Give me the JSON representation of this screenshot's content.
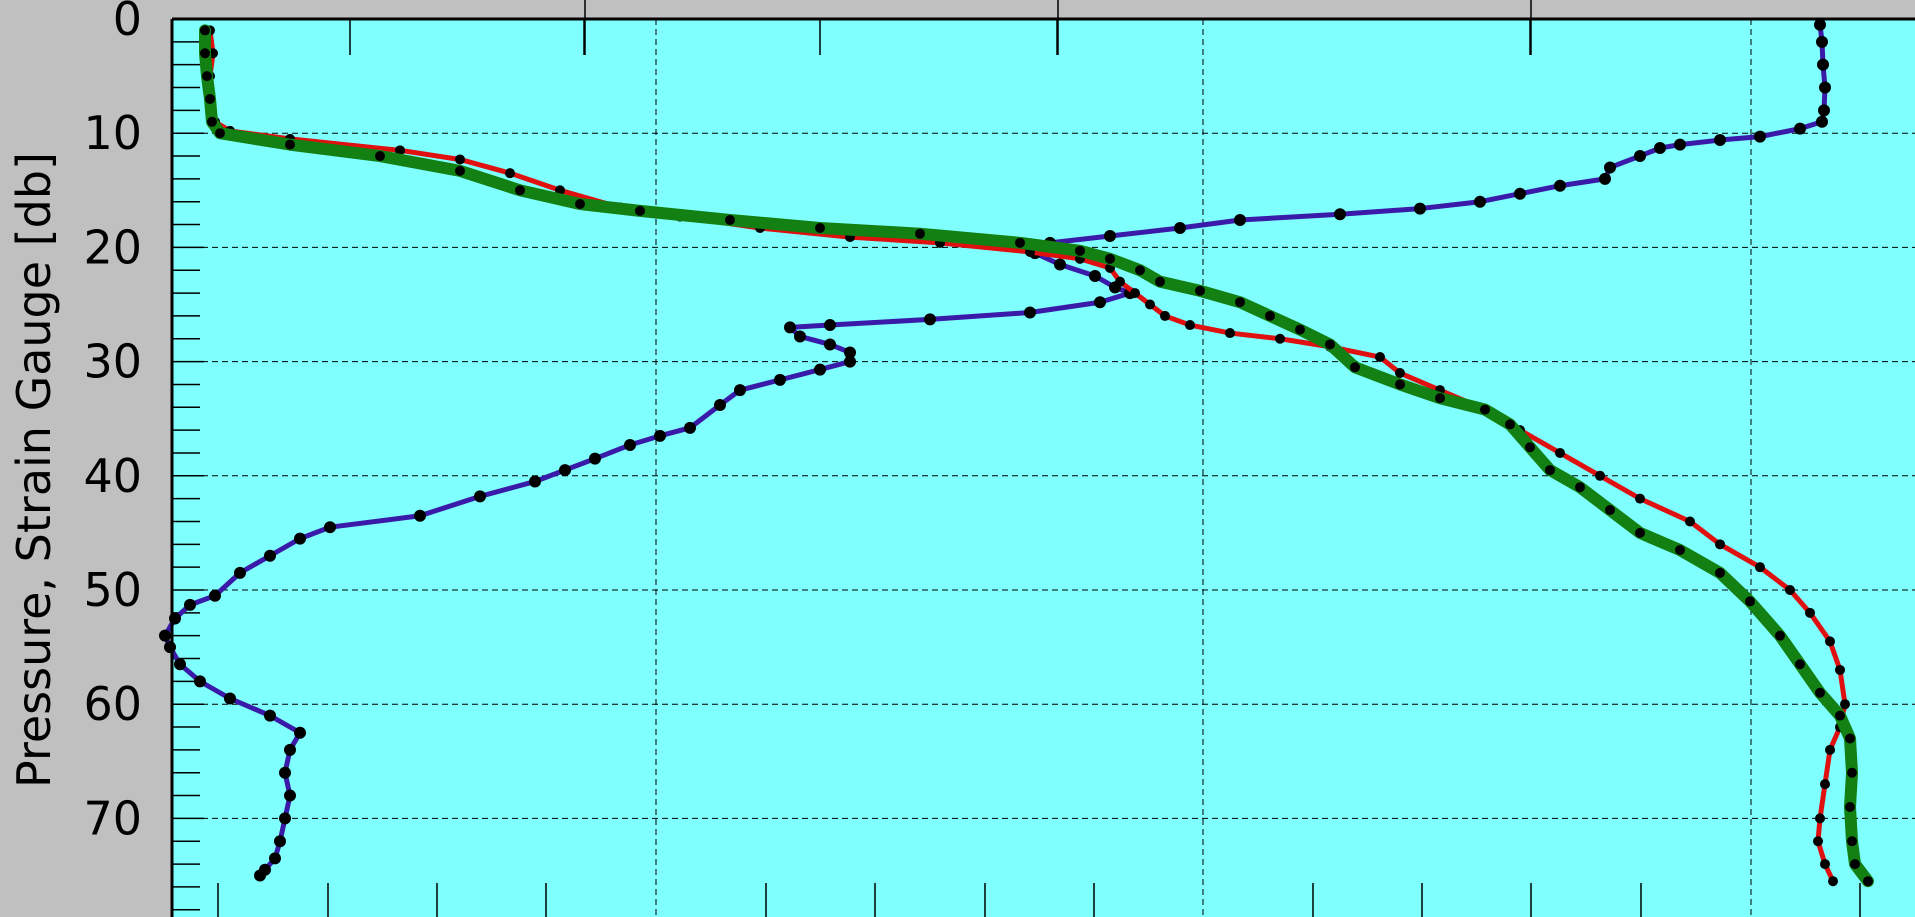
{
  "chart_data": {
    "type": "line",
    "ylabel": "Pressure, Strain Gauge [db]",
    "y_axis": {
      "ticks": [
        0,
        10,
        20,
        30,
        40,
        50,
        60,
        70
      ],
      "inverted": true
    },
    "grid": true,
    "colors": {
      "background": "#80ffff",
      "frame": "#c0c0c0",
      "markers": "#000000",
      "series_purple": "#3a1aa8",
      "series_red": "#e01010",
      "series_green": "#128012"
    },
    "series": [
      {
        "color": "#3a1aa8",
        "line_width": 5,
        "marker_radius": 6,
        "points": [
          [
            1820,
            0.5
          ],
          [
            1822,
            2
          ],
          [
            1823,
            4
          ],
          [
            1825,
            6
          ],
          [
            1824,
            8
          ],
          [
            1822,
            9
          ],
          [
            1800,
            9.6
          ],
          [
            1760,
            10.3
          ],
          [
            1720,
            10.6
          ],
          [
            1680,
            11
          ],
          [
            1660,
            11.3
          ],
          [
            1640,
            12
          ],
          [
            1610,
            13
          ],
          [
            1605,
            14
          ],
          [
            1560,
            14.6
          ],
          [
            1520,
            15.3
          ],
          [
            1480,
            16
          ],
          [
            1420,
            16.6
          ],
          [
            1340,
            17.1
          ],
          [
            1240,
            17.6
          ],
          [
            1180,
            18.3
          ],
          [
            1110,
            19
          ],
          [
            1050,
            19.6
          ],
          [
            1035,
            20.5
          ],
          [
            1060,
            21.5
          ],
          [
            1095,
            22.5
          ],
          [
            1115,
            23.5
          ],
          [
            1130,
            24
          ],
          [
            1100,
            24.8
          ],
          [
            1030,
            25.7
          ],
          [
            930,
            26.3
          ],
          [
            830,
            26.8
          ],
          [
            790,
            27
          ],
          [
            800,
            27.8
          ],
          [
            830,
            28.5
          ],
          [
            850,
            29.2
          ],
          [
            850,
            30
          ],
          [
            820,
            30.7
          ],
          [
            780,
            31.6
          ],
          [
            740,
            32.5
          ],
          [
            720,
            33.8
          ],
          [
            690,
            35.8
          ],
          [
            660,
            36.5
          ],
          [
            630,
            37.3
          ],
          [
            595,
            38.5
          ],
          [
            565,
            39.5
          ],
          [
            535,
            40.5
          ],
          [
            480,
            41.8
          ],
          [
            420,
            43.5
          ],
          [
            330,
            44.5
          ],
          [
            300,
            45.5
          ],
          [
            270,
            47
          ],
          [
            240,
            48.5
          ],
          [
            215,
            50.5
          ],
          [
            190,
            51.3
          ],
          [
            175,
            52.5
          ],
          [
            165,
            54
          ],
          [
            170,
            55
          ],
          [
            180,
            56.5
          ],
          [
            200,
            58
          ],
          [
            230,
            59.5
          ],
          [
            270,
            61
          ],
          [
            300,
            62.5
          ],
          [
            290,
            64
          ],
          [
            285,
            66
          ],
          [
            290,
            68
          ],
          [
            285,
            70
          ],
          [
            280,
            72
          ],
          [
            275,
            73.5
          ],
          [
            265,
            74.5
          ],
          [
            260,
            75
          ]
        ]
      },
      {
        "color": "#e01010",
        "line_width": 5,
        "marker_radius": 5,
        "points": [
          [
            210,
            1
          ],
          [
            213,
            3
          ],
          [
            210,
            5
          ],
          [
            210,
            7
          ],
          [
            215,
            9
          ],
          [
            230,
            9.8
          ],
          [
            290,
            10.5
          ],
          [
            400,
            11.5
          ],
          [
            460,
            12.3
          ],
          [
            510,
            13.5
          ],
          [
            560,
            15
          ],
          [
            620,
            16.5
          ],
          [
            680,
            17.3
          ],
          [
            760,
            18.3
          ],
          [
            850,
            19.1
          ],
          [
            940,
            19.6
          ],
          [
            1030,
            20.4
          ],
          [
            1080,
            21
          ],
          [
            1110,
            21.8
          ],
          [
            1120,
            23
          ],
          [
            1135,
            24
          ],
          [
            1150,
            25
          ],
          [
            1165,
            26
          ],
          [
            1190,
            26.8
          ],
          [
            1230,
            27.5
          ],
          [
            1280,
            28
          ],
          [
            1330,
            28.7
          ],
          [
            1380,
            29.6
          ],
          [
            1400,
            31
          ],
          [
            1440,
            32.5
          ],
          [
            1480,
            34
          ],
          [
            1520,
            36
          ],
          [
            1560,
            38
          ],
          [
            1600,
            40
          ],
          [
            1640,
            42
          ],
          [
            1690,
            44
          ],
          [
            1720,
            46
          ],
          [
            1760,
            48
          ],
          [
            1790,
            50
          ],
          [
            1810,
            52
          ],
          [
            1830,
            54.5
          ],
          [
            1840,
            57
          ],
          [
            1845,
            60
          ],
          [
            1840,
            62
          ],
          [
            1830,
            64
          ],
          [
            1825,
            67
          ],
          [
            1820,
            70
          ],
          [
            1818,
            72
          ],
          [
            1825,
            74
          ],
          [
            1833,
            75.5
          ]
        ]
      },
      {
        "color": "#128012",
        "line_width": 12,
        "marker_radius": 5,
        "points": [
          [
            205,
            1
          ],
          [
            205,
            3
          ],
          [
            207,
            5
          ],
          [
            210,
            7
          ],
          [
            212,
            9
          ],
          [
            220,
            10
          ],
          [
            290,
            11
          ],
          [
            380,
            12
          ],
          [
            460,
            13.3
          ],
          [
            520,
            15
          ],
          [
            580,
            16.2
          ],
          [
            640,
            16.8
          ],
          [
            730,
            17.6
          ],
          [
            820,
            18.3
          ],
          [
            920,
            18.8
          ],
          [
            1020,
            19.6
          ],
          [
            1080,
            20.3
          ],
          [
            1110,
            21
          ],
          [
            1140,
            22
          ],
          [
            1160,
            23
          ],
          [
            1200,
            23.8
          ],
          [
            1240,
            24.8
          ],
          [
            1270,
            26
          ],
          [
            1300,
            27.2
          ],
          [
            1330,
            28.5
          ],
          [
            1355,
            30.5
          ],
          [
            1400,
            32
          ],
          [
            1440,
            33.2
          ],
          [
            1485,
            34.2
          ],
          [
            1510,
            35.5
          ],
          [
            1530,
            37.5
          ],
          [
            1550,
            39.5
          ],
          [
            1580,
            41
          ],
          [
            1610,
            43
          ],
          [
            1640,
            45
          ],
          [
            1680,
            46.5
          ],
          [
            1720,
            48.5
          ],
          [
            1750,
            51
          ],
          [
            1780,
            54
          ],
          [
            1800,
            56.5
          ],
          [
            1820,
            59
          ],
          [
            1840,
            61
          ],
          [
            1850,
            63
          ],
          [
            1852,
            66
          ],
          [
            1850,
            69
          ],
          [
            1852,
            72
          ],
          [
            1855,
            74
          ],
          [
            1868,
            75.5
          ]
        ]
      }
    ]
  }
}
